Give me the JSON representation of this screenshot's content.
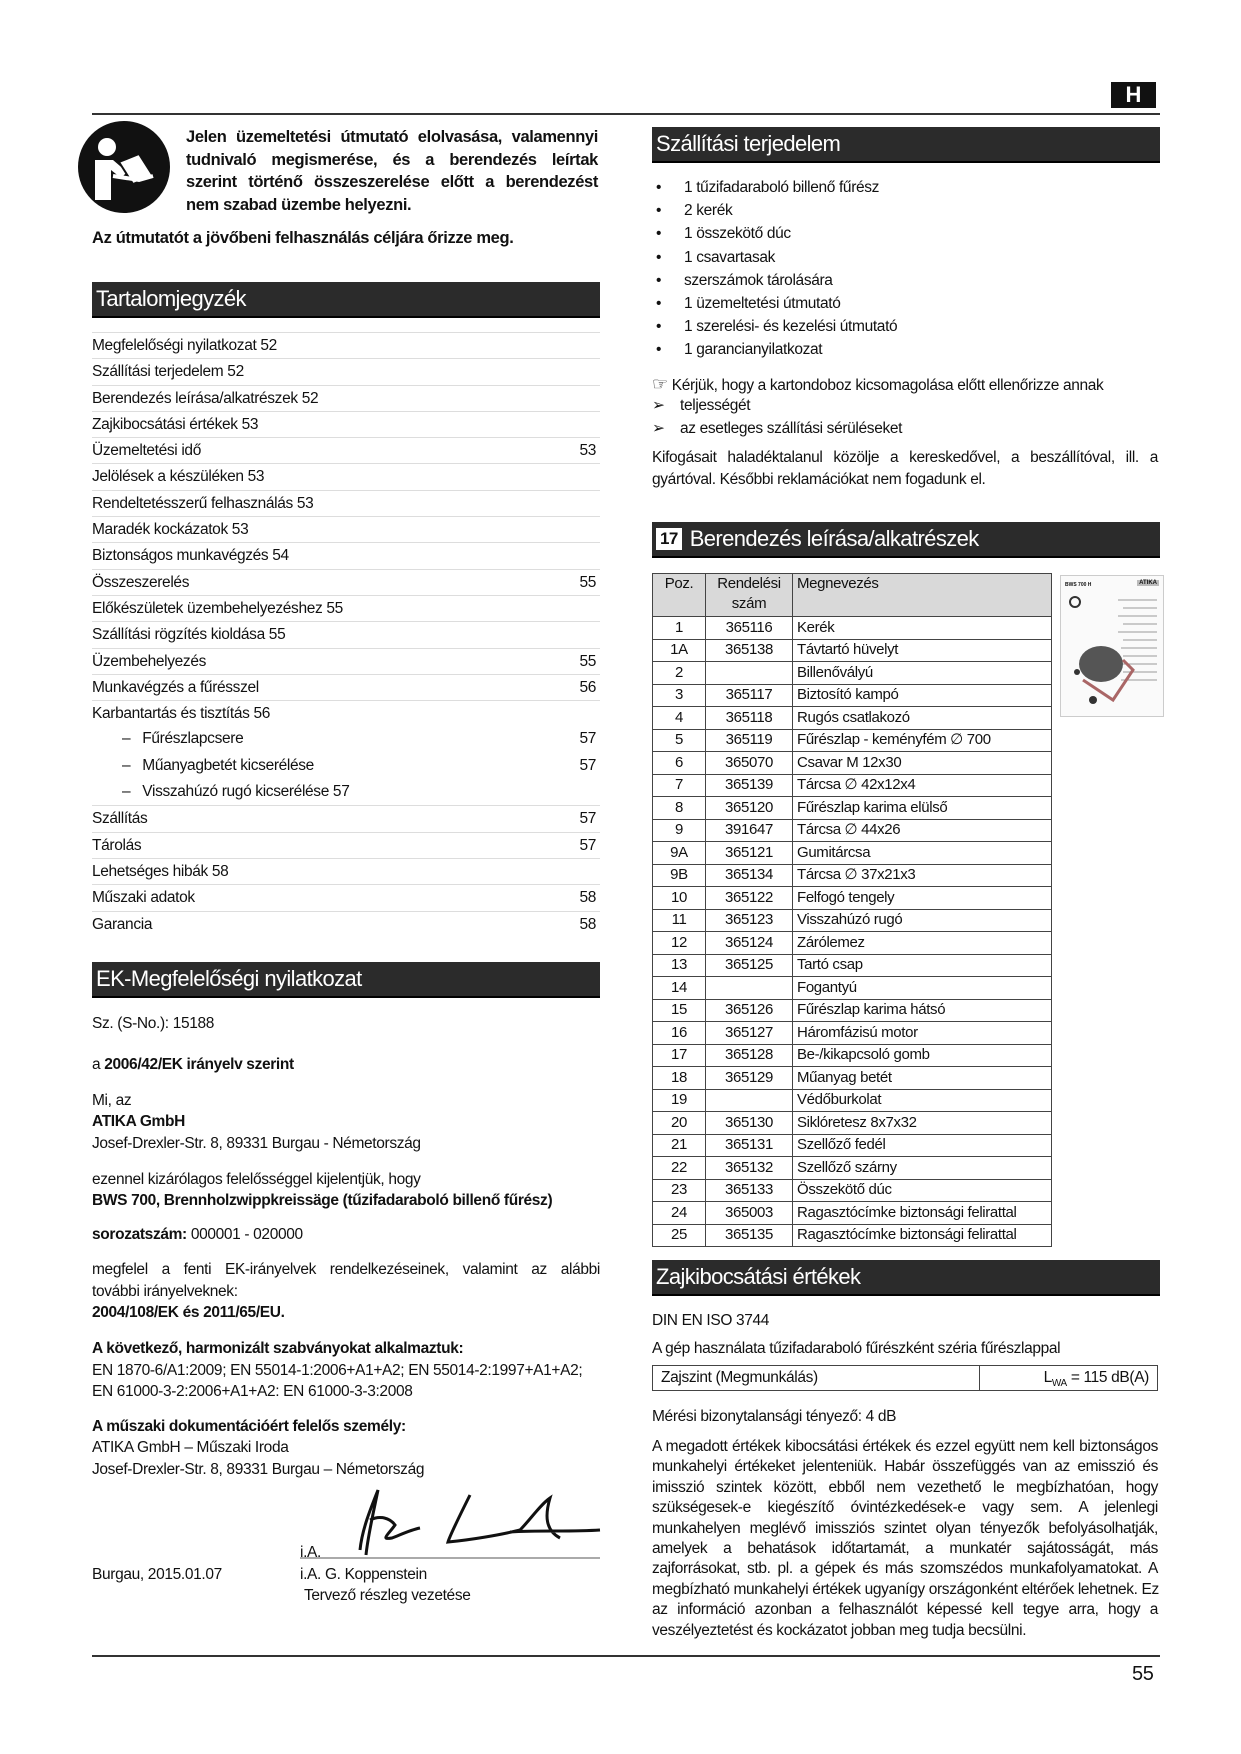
{
  "page_badge": "H",
  "intro": {
    "lines": [
      "Jelen üzemeltetési útmutató elolvasása, valamennyi",
      "tudnivaló megismerése, és a berendezés leírtak",
      "szerint történő összeszerelése előtt a berendezést",
      "nem szabad üzembe helyezni."
    ],
    "keep_note": "Az útmutatót a jövőbeni felhasználás céljára őrizze meg."
  },
  "toc": {
    "title": "Tartalomjegyzék",
    "items": [
      {
        "label": "Megfelelőségi nyilatkozat 52",
        "page": ""
      },
      {
        "label": "Szállítási terjedelem 52",
        "page": ""
      },
      {
        "label": "Berendezés leírása/alkatrészek 52",
        "page": ""
      },
      {
        "label": "Zajkibocsátási értékek 53",
        "page": ""
      },
      {
        "label": "Üzemeltetési idő",
        "page": "53"
      },
      {
        "label": "Jelölések a készüléken 53",
        "page": ""
      },
      {
        "label": "Rendeltetésszerű felhasználás 53",
        "page": ""
      },
      {
        "label": "Maradék kockázatok 53",
        "page": ""
      },
      {
        "label": "Biztonságos munkavégzés 54",
        "page": ""
      },
      {
        "label": "Összeszerelés",
        "page": "55"
      },
      {
        "label": "Előkészületek üzembehelyezéshez 55",
        "page": ""
      },
      {
        "label": "Szállítási rögzítés kioldása 55",
        "page": ""
      },
      {
        "label": "Üzembehelyezés",
        "page": "55"
      },
      {
        "label": "Munkavégzés a fűrésszel",
        "page": "56"
      },
      {
        "label": "Karbantartás és tisztítás 56",
        "page": ""
      },
      {
        "label": "Fűrészlapcsere",
        "page": "57",
        "sub": true
      },
      {
        "label": "Műanyagbetét kicserélése",
        "page": "57",
        "sub": true
      },
      {
        "label": "Visszahúzó rugó kicserélése 57",
        "page": "",
        "sub": true
      },
      {
        "label": "Szállítás",
        "page": "57"
      },
      {
        "label": "Tárolás",
        "page": "57"
      },
      {
        "label": "Lehetséges hibák 58",
        "page": ""
      },
      {
        "label": "Műszaki adatok",
        "page": "58"
      },
      {
        "label": "Garancia",
        "page": "58"
      }
    ]
  },
  "declaration": {
    "title": "EK-Megfelelőségi nyilatkozat",
    "serial": "Sz. (S-No.): 15188",
    "directive_prefix": "a ",
    "directive": "2006/42/EK irányelv szerint",
    "we": "Mi, az",
    "company": "ATIKA GmbH",
    "address": "Josef-Drexler-Str. 8, 89331 Burgau - Németország",
    "declare": "ezennel kizárólagos felelősséggel kijelentjük, hogy",
    "product": "BWS 700, Brennholzwippkreissäge (tűzifadaraboló billenő fűrész)",
    "series_label": "sorozatszám:",
    "series_value": " 000001 - 020000",
    "conform_lines": [
      "megfelel a fenti EK-irányelvek rendelkezéseinek, valamint az alábbi",
      "további irányelveknek:"
    ],
    "other_directives": "2004/108/EK és 2011/65/EU.",
    "standards_title": "A következő, harmonizált szabványokat alkalmaztuk:",
    "standards_lines": [
      "EN 1870-6/A1:2009; EN 55014-1:2006+A1+A2; EN 55014-2:1997+A1+A2;",
      "EN 61000-3-2:2006+A1+A2: EN 61000-3-3:2008"
    ],
    "doc_title": "A műszaki dokumentációért felelős személy:",
    "doc_company": "ATIKA GmbH – Műszaki Iroda",
    "doc_address": "Josef-Drexler-Str. 8, 89331 Burgau – Németország",
    "sig_ia": "i.A.",
    "place_date": "Burgau, 2015.01.07",
    "signer": "i.A. G. Koppenstein",
    "signer_role": "Tervező részleg vezetése"
  },
  "delivery": {
    "title": "Szállítási terjedelem",
    "items": [
      "1 tűzifadaraboló billenő fűrész",
      "2 kerék",
      "1 összekötő dúc",
      "1 csavartasak",
      "szerszámok tárolására",
      "1 üzemeltetési útmutató",
      "1 szerelési- és kezelési útmutató",
      "1 garancianyilatkozat"
    ],
    "check_note": "Kérjük, hogy a kartondoboz kicsomagolása előtt ellenőrizze annak",
    "check_items": [
      "teljességét",
      "az esetleges szállítási sérüléseket"
    ],
    "complaint_lines": [
      "Kifogásait haladéktalanul közölje a kereskedővel, a beszállítóval, ill. a",
      "gyártóval. Későbbi reklamációkat nem fogadunk el."
    ]
  },
  "parts": {
    "figure_no": "17",
    "title": "Berendezés leírása/alkatrészek",
    "columns": [
      "Poz.",
      "Rendelési szám",
      "Megnevezés"
    ],
    "rows": [
      [
        "1",
        "365116",
        "Kerék"
      ],
      [
        "1A",
        "365138",
        "Távtartó hüvelyt"
      ],
      [
        "2",
        "",
        "Billenővályú"
      ],
      [
        "3",
        "365117",
        "Biztosító kampó"
      ],
      [
        "4",
        "365118",
        "Rugós csatlakozó"
      ],
      [
        "5",
        "365119",
        "Fűrészlap - keményfém ∅ 700"
      ],
      [
        "6",
        "365070",
        "Csavar M 12x30"
      ],
      [
        "7",
        "365139",
        "Tárcsa ∅ 42x12x4"
      ],
      [
        "8",
        "365120",
        "Fűrészlap karima elülső"
      ],
      [
        "9",
        "391647",
        "Tárcsa ∅ 44x26"
      ],
      [
        "9A",
        "365121",
        "Gumitárcsa"
      ],
      [
        "9B",
        "365134",
        "Tárcsa ∅ 37x21x3"
      ],
      [
        "10",
        "365122",
        "Felfogó tengely"
      ],
      [
        "11",
        "365123",
        "Visszahúzó rugó"
      ],
      [
        "12",
        "365124",
        "Zárólemez"
      ],
      [
        "13",
        "365125",
        "Tartó csap"
      ],
      [
        "14",
        "",
        "Fogantyú"
      ],
      [
        "15",
        "365126",
        "Fűrészlap karima hátsó"
      ],
      [
        "16",
        "365127",
        "Háromfázisú motor"
      ],
      [
        "17",
        "365128",
        "Be-/kikapcsoló gomb"
      ],
      [
        "18",
        "365129",
        "Műanyag betét"
      ],
      [
        "19",
        "",
        "Védőburkolat"
      ],
      [
        "20",
        "365130",
        "Siklóretesz 8x7x32"
      ],
      [
        "21",
        "365131",
        "Szellőző fedél"
      ],
      [
        "22",
        "365132",
        "Szellőző szárny"
      ],
      [
        "23",
        "365133",
        "Összekötő dúc"
      ],
      [
        "24",
        "365003",
        "Ragasztócímke biztonsági felirattal"
      ],
      [
        "25",
        "365135",
        "Ragasztócímke biztonsági felirattal"
      ]
    ],
    "thumbnail_brand": "ATIKA",
    "thumbnail_model": "BWS 700 H"
  },
  "noise": {
    "title": "Zajkibocsátási értékek",
    "standard": "DIN EN ISO 3744",
    "usage": "A gép használata tűzifadaraboló fűrészként széria fűrészlappal",
    "level_label": "Zajszint (Megmunkálás)",
    "level_symbol": "L",
    "level_sub": "WA",
    "level_value": " = 115 dB(A)",
    "uncertainty": "Mérési bizonytalansági tényező: 4 dB",
    "paragraph_lines": [
      "A megadott értékek kibocsátási értékek és ezzel együtt nem kell biztonságos",
      "munkahelyi értékeket jelenteniük. Habár összefüggés van az emisszió és",
      "imisszió szintek között, ebből nem vezethető le megbízhatóan, hogy",
      "szükségesek-e kiegészítő óvintézkedések-e vagy sem. A jelenlegi",
      "munkahelyen meglévő imissziós szintet olyan tényezők befolyásolhatják,",
      "amelyek a behatások időtartamát, a munkatér sajátosságát, más",
      "zajforrásokat, stb. pl. a gépek és más szomszédos munkafolyamatokat. A",
      "megbízható munkahelyi értékek ugyanígy országonként eltérőek lehetnek. Ez",
      "az információ azonban a felhasználót képessé kell tegye arra, hogy a",
      "veszélyeztetést és kockázatot jobban meg tudja becsülni."
    ]
  },
  "page_number": "55"
}
